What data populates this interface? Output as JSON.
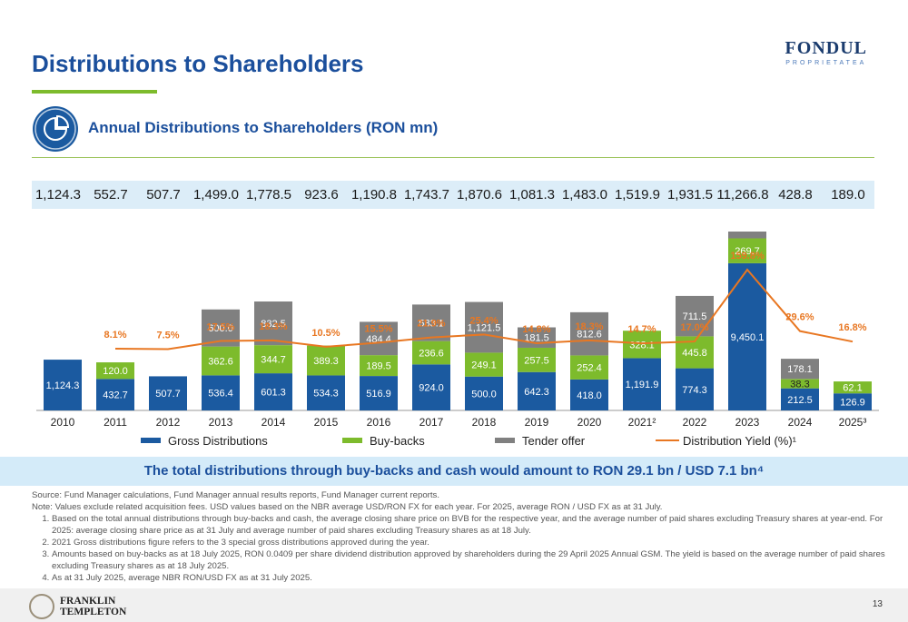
{
  "header": {
    "title": "Distributions to Shareholders",
    "logo_main": "FONDUL",
    "logo_sub": "PROPRIETATEA"
  },
  "section": {
    "title": "Annual Distributions to Shareholders (RON mn)"
  },
  "totals": [
    "1,124.3",
    "552.7",
    "507.7",
    "1,499.0",
    "1,778.5",
    "923.6",
    "1,190.8",
    "1,743.7",
    "1,870.6",
    "1,081.3",
    "1,483.0",
    "1,519.9",
    "1,931.5",
    "11,266.8",
    "428.8",
    "189.0"
  ],
  "colors": {
    "gross": "#1b5aa0",
    "buyback": "#7dbb2c",
    "tender": "#808080",
    "yield": "#e87722",
    "title": "#1b4f9c"
  },
  "chart_data": {
    "type": "bar",
    "stacked": true,
    "categories": [
      "2010",
      "2011",
      "2012",
      "2013",
      "2014",
      "2015",
      "2016",
      "2017",
      "2018",
      "2019",
      "2020",
      "2021²",
      "2022",
      "2023",
      "2024",
      "2025³"
    ],
    "series": [
      {
        "name": "Gross Distributions",
        "values": [
          1124.3,
          432.7,
          507.7,
          536.4,
          601.3,
          534.3,
          516.9,
          924.0,
          500.0,
          642.3,
          418.0,
          1191.9,
          774.3,
          9450.1,
          212.5,
          126.9
        ],
        "labels": [
          "1,124.3",
          "432.7",
          "507.7",
          "536.4",
          "601.3",
          "534.3",
          "516.9",
          "924.0",
          "500.0",
          "642.3",
          "418.0",
          "1,191.9",
          "774.3",
          "9,450.1",
          "212.5",
          "126.9"
        ]
      },
      {
        "name": "Buy-backs",
        "values": [
          0,
          120.0,
          0,
          362.6,
          344.7,
          389.3,
          189.5,
          236.6,
          249.1,
          257.5,
          252.4,
          328.1,
          445.8,
          269.7,
          38.3,
          62.1
        ],
        "labels": [
          "",
          "120.0",
          "",
          "362.6",
          "344.7",
          "389.3",
          "189.5",
          "236.6",
          "249.1",
          "257.5",
          "252.4",
          "328.1",
          "445.8",
          "269.7",
          "38.3",
          "62.1"
        ]
      },
      {
        "name": "Tender offer",
        "values": [
          0,
          0,
          0,
          600.0,
          832.5,
          0,
          484.4,
          583.1,
          1121.5,
          181.5,
          812.6,
          0,
          711.5,
          1547.0,
          178.1,
          0
        ],
        "labels": [
          "",
          "",
          "",
          "600.0",
          "832.5",
          "",
          "484.4",
          "583.1",
          "1,121.5",
          "181.5",
          "812.6",
          "",
          "711.5",
          "1,547.0",
          "178.1",
          ""
        ]
      }
    ],
    "line": {
      "name": "Distribution Yield (%)¹",
      "values": [
        null,
        8.1,
        7.5,
        17.5,
        18.3,
        10.5,
        15.5,
        21.9,
        25.4,
        14.8,
        18.3,
        14.7,
        17.0,
        159.8,
        29.6,
        16.8
      ],
      "labels": [
        "",
        "8.1%",
        "7.5%",
        "17.5%",
        "18.3%",
        "10.5%",
        "15.5%",
        "21.9%",
        "25.4%",
        "14.8%",
        "18.3%",
        "14.7%",
        "17.0%",
        "159.8%",
        "29.6%",
        "16.8%"
      ]
    },
    "legend_position": "bottom"
  },
  "banner": {
    "text": "The total distributions through buy-backs and cash would amount to RON 29.1 bn / USD 7.1 bn⁴"
  },
  "notes": {
    "source": "Source: Fund Manager calculations, Fund Manager annual results reports, Fund Manager current reports.",
    "note": "Note: Values exclude related acquisition fees. USD values based on the NBR average USD/RON FX for each year. For 2025, average RON / USD FX as at 31 July.",
    "items": [
      "Based on the total annual distributions through buy-backs and cash, the average closing share price on BVB for the respective year, and the average number of paid shares excluding Treasury shares at year-end. For 2025: average closing share price as at 31 July and average number of paid shares excluding Treasury shares as at 18 July.",
      "2021 Gross distributions figure refers to the 3 special gross distributions approved during the year.",
      "Amounts based on buy-backs as at 18 July 2025, RON 0.0409 per share dividend distribution approved by shareholders during the 29 April 2025 Annual GSM. The yield is based on the average number of paid shares excluding Treasury shares as at 18 July 2025.",
      "As at 31 July 2025, average NBR RON/USD FX as at 31 July 2025."
    ]
  },
  "footer": {
    "logo_line1": "FRANKLIN",
    "logo_line2": "TEMPLETON",
    "page_number": "13"
  }
}
